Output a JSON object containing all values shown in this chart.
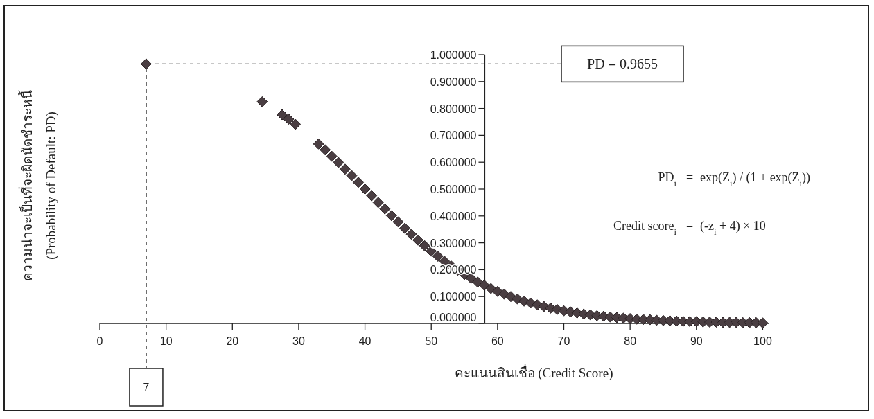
{
  "chart_data": {
    "type": "scatter",
    "xlabel": "คะแนนสินเชื่อ (Credit Score)",
    "ylabel": "ความน่าจะเป็นที่จะผิดนัดชำระหนี้\n(Probability of Default: PD)",
    "marker": "diamond",
    "grid": false,
    "xlim": [
      0,
      101
    ],
    "xticks": [
      0,
      10,
      20,
      30,
      40,
      50,
      60,
      70,
      80,
      90,
      100
    ],
    "ylim": [
      0,
      1
    ],
    "yticks": [
      {
        "value": 0,
        "label": "0.000000"
      },
      {
        "value": 0.1,
        "label": "0.100000"
      },
      {
        "value": 0.2,
        "label": "0.200000"
      },
      {
        "value": 0.3,
        "label": "0.300000"
      },
      {
        "value": 0.4,
        "label": "0.400000"
      },
      {
        "value": 0.5,
        "label": "0.500000"
      },
      {
        "value": 0.6,
        "label": "0.600000"
      },
      {
        "value": 0.7,
        "label": "0.700000"
      },
      {
        "value": 0.8,
        "label": "0.800000"
      },
      {
        "value": 0.9,
        "label": "0.900000"
      },
      {
        "value": 1,
        "label": "1.000000"
      }
    ],
    "series": [
      {
        "color": "#4a3e42",
        "x": [
          7,
          24.5,
          27.5,
          28.5,
          29.5,
          33,
          34,
          35,
          36,
          37,
          38,
          39,
          40,
          41,
          42,
          43,
          44,
          45,
          46,
          47,
          48,
          49,
          50,
          51,
          52,
          53,
          54,
          55,
          56,
          57,
          58,
          59,
          60,
          61,
          62,
          63,
          64,
          65,
          66,
          67,
          68,
          69,
          70,
          71,
          72,
          73,
          74,
          75,
          76,
          77,
          78,
          79,
          80,
          81,
          82,
          83,
          84,
          85,
          86,
          87,
          88,
          89,
          90,
          91,
          92,
          93,
          94,
          95,
          96,
          97,
          98,
          99,
          100
        ],
        "values": [
          0.9655,
          0.825,
          0.777,
          0.76,
          0.741,
          0.668,
          0.646,
          0.622,
          0.599,
          0.574,
          0.55,
          0.525,
          0.5,
          0.475,
          0.45,
          0.426,
          0.401,
          0.378,
          0.354,
          0.332,
          0.31,
          0.289,
          0.269,
          0.25,
          0.231,
          0.214,
          0.198,
          0.182,
          0.168,
          0.154,
          0.142,
          0.13,
          0.119,
          0.109,
          0.1,
          0.091,
          0.083,
          0.076,
          0.069,
          0.063,
          0.057,
          0.052,
          0.047,
          0.043,
          0.039,
          0.035,
          0.032,
          0.029,
          0.027,
          0.024,
          0.022,
          0.02,
          0.018,
          0.016,
          0.015,
          0.014,
          0.012,
          0.011,
          0.01,
          0.009,
          0.008,
          0.007,
          0.007,
          0.006,
          0.005,
          0.005,
          0.004,
          0.004,
          0.004,
          0.003,
          0.003,
          0.003,
          0.002
        ]
      }
    ],
    "ref_lines": [
      {
        "axis": "x",
        "value": 7,
        "label": "7",
        "line_style": "dashed"
      },
      {
        "axis": "y",
        "value": 0.9655,
        "label": "PD = 0.9655",
        "line_style": "dashed"
      }
    ],
    "annotations": [
      "PD$_{i}$ = exp(Z$_{i}$) / (1 + exp(Z$_{i}$))",
      "Credit score$_{i}$ = (-z$_{i}$ + 4) × 10"
    ]
  }
}
